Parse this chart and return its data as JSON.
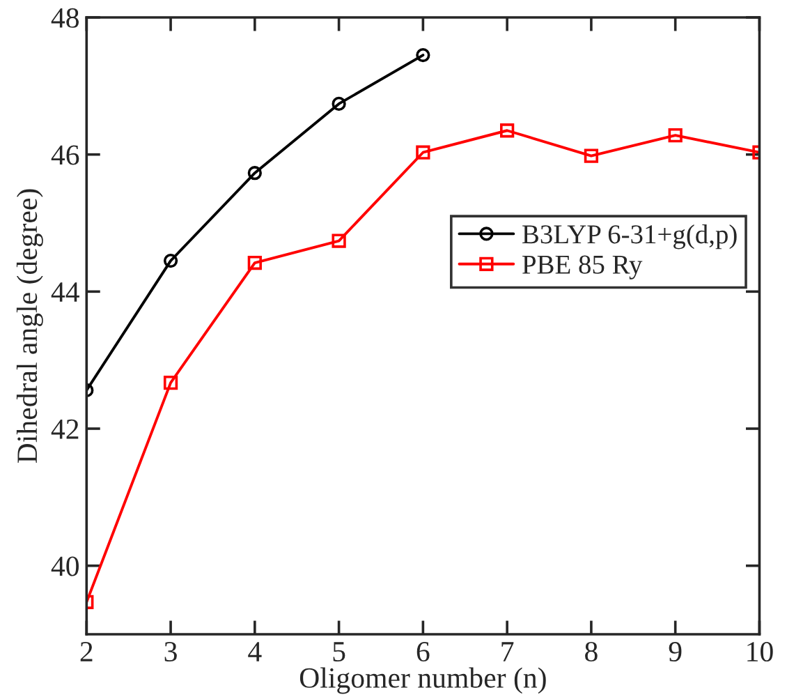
{
  "chart_data": {
    "type": "line",
    "xlabel": "Oligomer number (n)",
    "ylabel": "Dihedral angle (degree)",
    "xlim": [
      2,
      10
    ],
    "xticks": [
      2,
      3,
      4,
      5,
      6,
      7,
      8,
      9,
      10
    ],
    "ylim": [
      39,
      48
    ],
    "yticks": [
      40,
      42,
      44,
      46,
      48
    ],
    "grid": false,
    "legend": "right",
    "series": [
      {
        "name": "B3LYP 6-31+g(d,p)",
        "color": "#000000",
        "marker": "circle",
        "x": [
          2,
          3,
          4,
          5,
          6
        ],
        "values": [
          42.56,
          44.45,
          45.73,
          46.74,
          47.45
        ]
      },
      {
        "name": "PBE 85 Ry",
        "color": "#ff0000",
        "marker": "square",
        "x": [
          2,
          3,
          4,
          5,
          6,
          7,
          8,
          9,
          10
        ],
        "values": [
          39.47,
          42.67,
          44.42,
          44.74,
          46.03,
          46.35,
          45.98,
          46.28,
          46.03
        ]
      }
    ]
  }
}
